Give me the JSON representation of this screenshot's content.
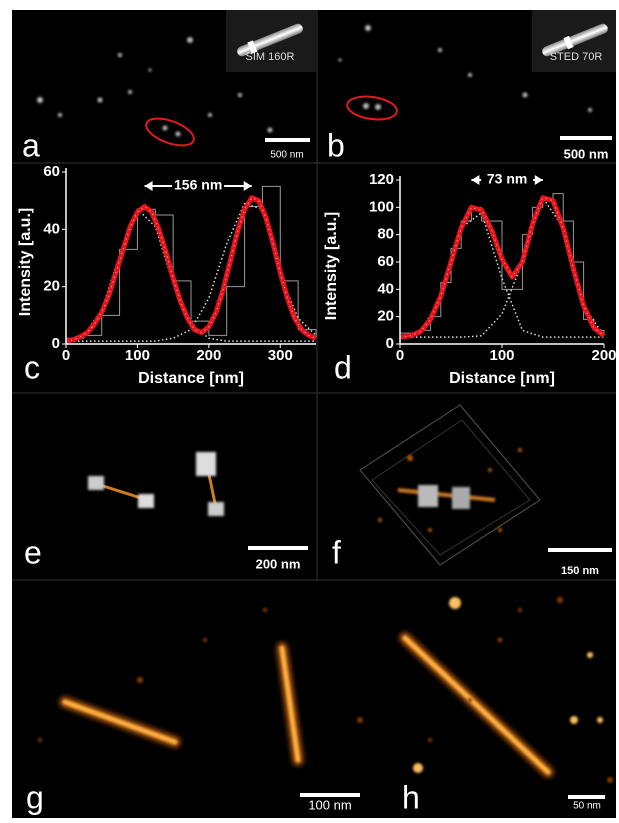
{
  "panels": [
    {
      "letter": "a",
      "scale_bar": "500 nm",
      "tag": "SIM 160R"
    },
    {
      "letter": "b",
      "scale_bar": "500 nm",
      "tag": "STED 70R"
    },
    {
      "letter": "c"
    },
    {
      "letter": "d"
    },
    {
      "letter": "e",
      "scale_bar": "200 nm"
    },
    {
      "letter": "f",
      "scale_bar": "150 nm"
    },
    {
      "letter": "g",
      "scale_bar": "100 nm"
    },
    {
      "letter": "h",
      "scale_bar": "50 nm"
    }
  ],
  "chart_data": [
    {
      "type": "line",
      "annotation": "156 nm",
      "xlabel": "Distance [nm]",
      "ylabel": "Intensity [a.u.]",
      "xlim": [
        0,
        350
      ],
      "ylim": [
        0,
        60
      ],
      "xticks": [
        0,
        100,
        200,
        300
      ],
      "yticks": [
        0,
        20,
        40,
        60
      ],
      "series": [
        {
          "style": "step",
          "color": "#9a9a9a",
          "x": [
            0,
            25,
            50,
            75,
            100,
            125,
            150,
            175,
            200,
            225,
            250,
            275,
            300,
            325,
            350
          ],
          "values": [
            2,
            3,
            10,
            33,
            47,
            45,
            22,
            8,
            3,
            20,
            48,
            55,
            22,
            5,
            2
          ]
        },
        {
          "style": "dotted",
          "color": "#dddddd",
          "x": [
            0,
            25,
            50,
            75,
            100,
            125,
            150,
            175,
            200,
            225,
            250,
            275,
            300,
            325,
            350
          ],
          "values": [
            1,
            3,
            12,
            31,
            47,
            41,
            21,
            7,
            2,
            1,
            1,
            1,
            1,
            1,
            1
          ]
        },
        {
          "style": "dotted",
          "color": "#dddddd",
          "x": [
            0,
            25,
            50,
            75,
            100,
            125,
            150,
            175,
            200,
            225,
            250,
            275,
            300,
            325,
            350
          ],
          "values": [
            1,
            1,
            1,
            1,
            1,
            1,
            2,
            5,
            16,
            35,
            49,
            47,
            24,
            9,
            3
          ]
        },
        {
          "style": "thick",
          "color": "#e8141b",
          "x": [
            0,
            10,
            20,
            30,
            40,
            50,
            60,
            70,
            80,
            90,
            100,
            110,
            120,
            130,
            140,
            150,
            160,
            170,
            180,
            190,
            200,
            210,
            220,
            230,
            240,
            250,
            260,
            270,
            280,
            290,
            300,
            310,
            320,
            330,
            340,
            350
          ],
          "values": [
            1,
            1.5,
            2.5,
            4,
            7,
            11,
            17,
            25,
            33,
            41,
            46,
            48,
            46,
            40,
            32,
            23,
            15,
            9,
            5,
            4,
            6,
            11,
            19,
            29,
            39,
            47,
            51,
            50,
            44,
            35,
            25,
            16,
            9,
            5,
            3,
            2
          ]
        }
      ]
    },
    {
      "type": "line",
      "annotation": "73 nm",
      "xlabel": "Distance [nm]",
      "ylabel": "Intensity [a.u.]",
      "xlim": [
        0,
        200
      ],
      "ylim": [
        0,
        120
      ],
      "xticks": [
        0,
        100,
        200
      ],
      "yticks": [
        0,
        20,
        40,
        60,
        80,
        100,
        120
      ],
      "series": [
        {
          "style": "step",
          "color": "#9a9a9a",
          "x": [
            0,
            10,
            20,
            30,
            40,
            50,
            60,
            70,
            80,
            90,
            100,
            110,
            120,
            130,
            140,
            150,
            160,
            170,
            180,
            190,
            200
          ],
          "values": [
            8,
            8,
            10,
            20,
            45,
            70,
            90,
            100,
            90,
            90,
            40,
            40,
            80,
            100,
            105,
            110,
            90,
            60,
            18,
            10,
            8
          ]
        },
        {
          "style": "dotted",
          "color": "#dddddd",
          "x": [
            0,
            20,
            40,
            60,
            80,
            100,
            120,
            140,
            160,
            180,
            200
          ],
          "values": [
            5,
            9,
            34,
            85,
            96,
            48,
            10,
            5,
            5,
            5,
            5
          ]
        },
        {
          "style": "dotted",
          "color": "#dddddd",
          "x": [
            0,
            20,
            40,
            60,
            80,
            100,
            120,
            140,
            160,
            180,
            200
          ],
          "values": [
            5,
            5,
            5,
            5,
            6,
            22,
            60,
            107,
            85,
            28,
            6
          ]
        },
        {
          "style": "thick",
          "color": "#e8141b",
          "x": [
            0,
            10,
            20,
            30,
            40,
            50,
            60,
            70,
            80,
            90,
            100,
            110,
            120,
            130,
            140,
            150,
            160,
            170,
            180,
            190,
            200
          ],
          "values": [
            5,
            6,
            9,
            18,
            35,
            60,
            85,
            100,
            98,
            83,
            62,
            49,
            60,
            88,
            107,
            105,
            85,
            55,
            28,
            12,
            6
          ]
        }
      ]
    }
  ]
}
